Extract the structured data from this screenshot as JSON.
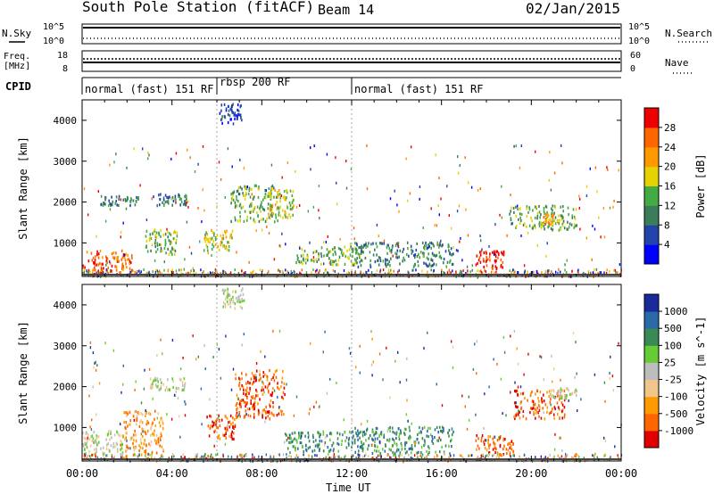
{
  "header": {
    "station": "South Pole Station (fitACF)",
    "beam": "Beam 14",
    "date": "02/Jan/2015"
  },
  "top_panels": {
    "nsky_label": "N.Sky",
    "nsearch_label": "N.Search",
    "freq_label_line1": "Freq.",
    "freq_label_line2": "[MHz]",
    "nave_label": "Nave",
    "cpid_label": "CPID",
    "noise_ticks_left": [
      "10^5",
      "10^0"
    ],
    "noise_ticks_right": [
      "10^5",
      "10^0"
    ],
    "freq_ticks": [
      "18",
      "8"
    ],
    "nave_ticks": [
      "60",
      "0"
    ]
  },
  "cpid_segments": [
    {
      "label": "normal (fast) 151 RF",
      "start": 0,
      "end": 6
    },
    {
      "label": "rbsp 200 RF",
      "start": 6,
      "end": 12
    },
    {
      "label": "normal (fast) 151 RF",
      "start": 12,
      "end": 24
    }
  ],
  "chart_data": [
    {
      "type": "heatmap",
      "title": "Power",
      "ylabel": "Slant Range [km]",
      "xlabel": "Time UT",
      "ylim": [
        180,
        4500
      ],
      "xlim": [
        0,
        24
      ],
      "yticks": [
        1000,
        2000,
        3000,
        4000
      ],
      "colorbar": {
        "label": "Power [dB]",
        "ticks": [
          "28",
          "24",
          "20",
          "16",
          "12",
          "8",
          "4"
        ],
        "colors": [
          "#0000ff",
          "#2244aa",
          "#3a7d5a",
          "#44aa44",
          "#e6d200",
          "#ff9900",
          "#ff6600",
          "#ee0000"
        ]
      },
      "echo_regions": [
        {
          "t0": 0.0,
          "t1": 2.2,
          "r0": 250,
          "r1": 800,
          "level": 6
        },
        {
          "t0": 0.8,
          "t1": 2.5,
          "r0": 1900,
          "r1": 2150,
          "level": 2
        },
        {
          "t0": 2.8,
          "t1": 4.2,
          "r0": 700,
          "r1": 1300,
          "level": 3
        },
        {
          "t0": 3.3,
          "t1": 4.7,
          "r0": 1900,
          "r1": 2200,
          "level": 2
        },
        {
          "t0": 5.4,
          "t1": 6.7,
          "r0": 800,
          "r1": 1300,
          "level": 4
        },
        {
          "t0": 6.1,
          "t1": 7.1,
          "r0": 3900,
          "r1": 4400,
          "level": 1
        },
        {
          "t0": 6.6,
          "t1": 8.8,
          "r0": 1500,
          "r1": 2400,
          "level": 3
        },
        {
          "t0": 8.2,
          "t1": 9.4,
          "r0": 1600,
          "r1": 2300,
          "level": 4
        },
        {
          "t0": 9.5,
          "t1": 12.5,
          "r0": 450,
          "r1": 900,
          "level": 3
        },
        {
          "t0": 12.0,
          "t1": 16.5,
          "r0": 400,
          "r1": 1000,
          "level": 2
        },
        {
          "t0": 17.5,
          "t1": 18.8,
          "r0": 350,
          "r1": 800,
          "level": 7
        },
        {
          "t0": 19.0,
          "t1": 22.0,
          "r0": 1300,
          "r1": 1900,
          "level": 3
        },
        {
          "t0": 20.5,
          "t1": 21.2,
          "r0": 1450,
          "r1": 1700,
          "level": 5
        }
      ]
    },
    {
      "type": "heatmap",
      "title": "Velocity",
      "ylabel": "Slant Range [km]",
      "xlabel": "Time UT",
      "ylim": [
        180,
        4500
      ],
      "xlim": [
        0,
        24
      ],
      "yticks": [
        1000,
        2000,
        3000,
        4000
      ],
      "colorbar": {
        "label": "Velocity [m s^-1]",
        "ticks": [
          "1000",
          "500",
          "100",
          "25",
          "-25",
          "-100",
          "-500",
          "-1000"
        ],
        "colors": [
          "#e00000",
          "#ff6600",
          "#ff9a00",
          "#f2c68a",
          "#bdbdbd",
          "#66cc33",
          "#3a8a55",
          "#2a6aa8",
          "#1a2a9a"
        ]
      },
      "echo_regions": [
        {
          "t0": 0.0,
          "t1": 1.8,
          "r0": 300,
          "r1": 900,
          "level": 4
        },
        {
          "t0": 1.8,
          "t1": 3.6,
          "r0": 300,
          "r1": 1400,
          "level": 2
        },
        {
          "t0": 3.0,
          "t1": 4.6,
          "r0": 1900,
          "r1": 2200,
          "level": 4
        },
        {
          "t0": 5.5,
          "t1": 6.8,
          "r0": 700,
          "r1": 1300,
          "level": 1
        },
        {
          "t0": 6.2,
          "t1": 7.2,
          "r0": 3900,
          "r1": 4400,
          "level": 4
        },
        {
          "t0": 6.8,
          "t1": 9.0,
          "r0": 1200,
          "r1": 2400,
          "level": 1
        },
        {
          "t0": 9.0,
          "t1": 12.5,
          "r0": 400,
          "r1": 900,
          "level": 6
        },
        {
          "t0": 12.0,
          "t1": 16.5,
          "r0": 350,
          "r1": 1000,
          "level": 6
        },
        {
          "t0": 17.5,
          "t1": 19.2,
          "r0": 300,
          "r1": 800,
          "level": 1
        },
        {
          "t0": 19.2,
          "t1": 21.5,
          "r0": 1200,
          "r1": 1900,
          "level": 1
        },
        {
          "t0": 20.8,
          "t1": 22.0,
          "r0": 1700,
          "r1": 1950,
          "level": 4
        }
      ]
    }
  ],
  "x_ticks": [
    "00:00",
    "04:00",
    "08:00",
    "12:00",
    "16:00",
    "20:00",
    "00:00"
  ],
  "x_label": "Time UT"
}
